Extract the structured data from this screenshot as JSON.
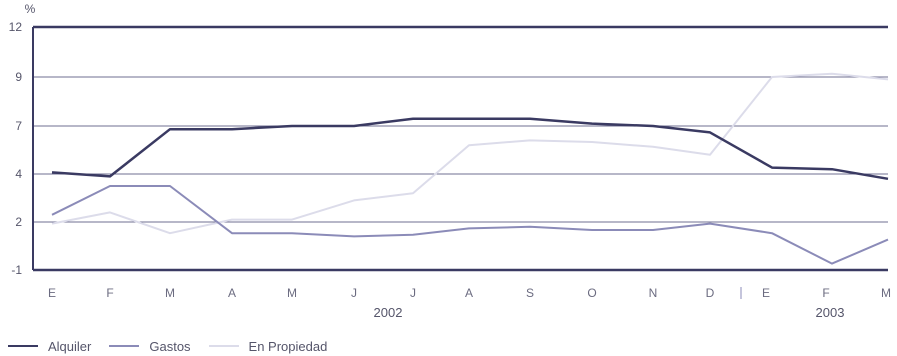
{
  "chart_data": {
    "type": "line",
    "yunit_label": "%",
    "yticks": [
      -1,
      2,
      4,
      7,
      9,
      12
    ],
    "x": [
      "E",
      "F",
      "M",
      "A",
      "M",
      "J",
      "J",
      "A",
      "S",
      "O",
      "N",
      "D",
      "E",
      "F",
      "M"
    ],
    "year_labels": [
      "2002",
      "2003"
    ],
    "series": [
      {
        "name": "Alquiler",
        "color": "#3a3a62",
        "values": [
          4.1,
          3.9,
          6.8,
          6.8,
          7.0,
          7.0,
          7.3,
          7.3,
          7.3,
          7.1,
          7.0,
          6.6,
          4.4,
          4.3,
          3.8
        ]
      },
      {
        "name": "Gastos",
        "color": "#8b8bb8",
        "values": [
          2.3,
          3.5,
          3.5,
          1.3,
          1.3,
          1.1,
          1.2,
          1.6,
          1.7,
          1.5,
          1.5,
          1.9,
          1.3,
          -0.6,
          0.9
        ]
      },
      {
        "name": "En Propiedad",
        "color": "#dcdcea",
        "values": [
          1.9,
          2.4,
          1.3,
          2.1,
          2.1,
          2.9,
          3.2,
          5.8,
          6.1,
          6.0,
          5.7,
          5.2,
          9.0,
          9.2,
          8.9
        ]
      }
    ]
  }
}
